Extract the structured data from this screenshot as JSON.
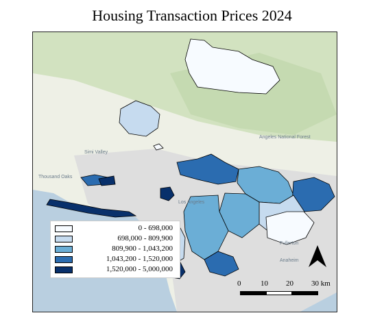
{
  "title": "Housing Transaction Prices 2024",
  "legend": [
    {
      "label": "0 - 698,000",
      "color": "#f7fbff"
    },
    {
      "label": "698,000 - 809,900",
      "color": "#c6dbef"
    },
    {
      "label": "809,900 - 1,043,200",
      "color": "#6baed6"
    },
    {
      "label": "1,043,200 - 1,520,000",
      "color": "#2b6cb0"
    },
    {
      "label": "1,520,000 - 5,000,000",
      "color": "#08306b"
    }
  ],
  "scale_bar": {
    "labels": [
      "0",
      "10",
      "20",
      "30 km"
    ]
  },
  "basemap_labels": {
    "la": "Los Angeles",
    "angeles_forest": "Angeles National Forest",
    "fullerton": "Fullerton",
    "anaheim": "Anaheim",
    "simi": "Simi Valley",
    "thousand_oaks": "Thousand Oaks"
  },
  "north_arrow": "north-arrow",
  "colors": {
    "water": "#b9cfe0",
    "land": "#eef0e6",
    "park": "#c8dbb6",
    "urban": "#dcdcdc"
  }
}
